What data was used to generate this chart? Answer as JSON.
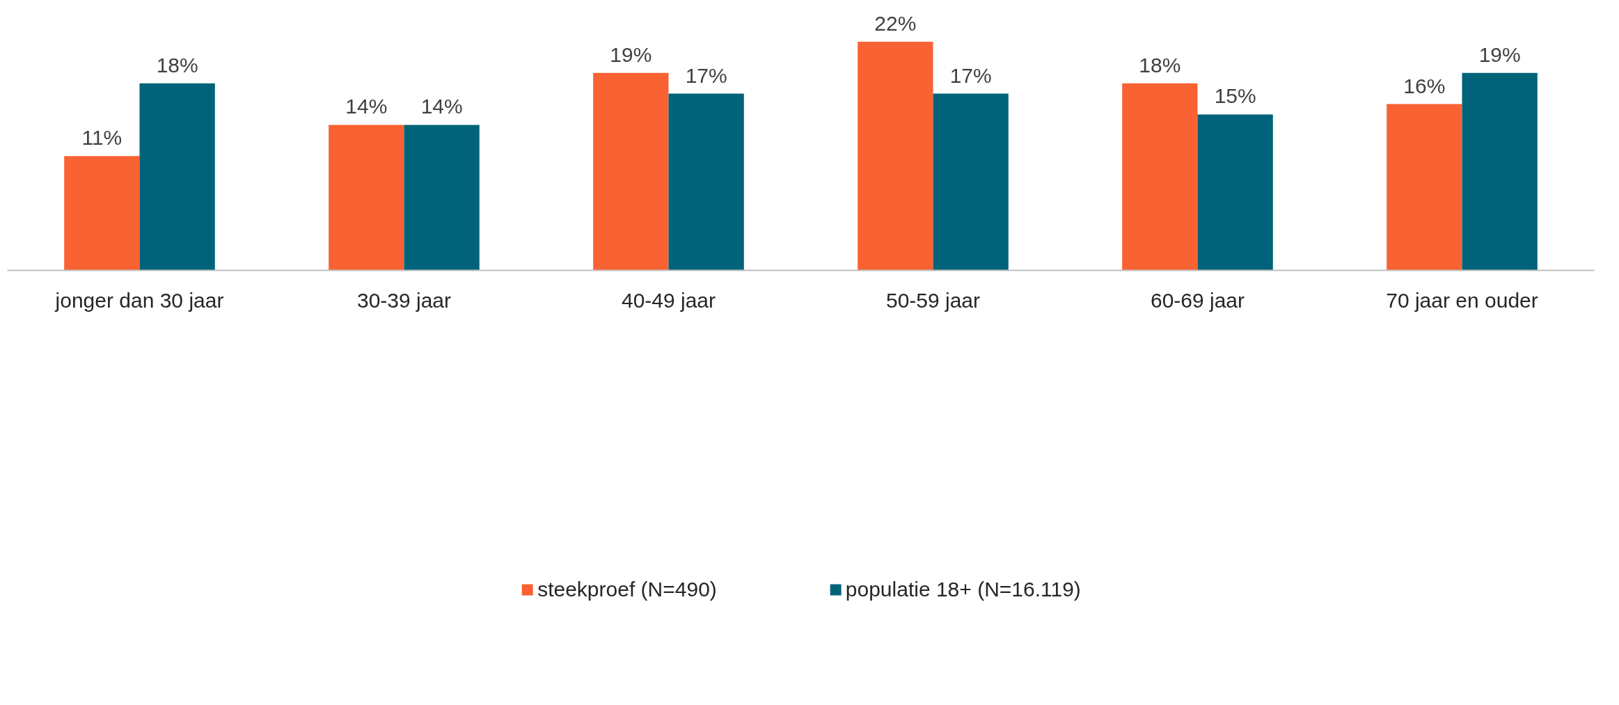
{
  "chart_data": {
    "type": "bar",
    "categories": [
      "jonger dan 30 jaar",
      "30-39 jaar",
      "40-49 jaar",
      "50-59 jaar",
      "60-69 jaar",
      "70 jaar en ouder"
    ],
    "series": [
      {
        "name": "steekproef (N=490)",
        "color": "#f96232",
        "values": [
          11,
          14,
          19,
          22,
          18,
          16
        ],
        "value_labels": [
          "11%",
          "14%",
          "19%",
          "22%",
          "18%",
          "16%"
        ]
      },
      {
        "name": "populatie 18+ (N=16.119)",
        "color": "#00637a",
        "values": [
          18,
          14,
          17,
          17,
          15,
          19
        ],
        "value_labels": [
          "18%",
          "14%",
          "17%",
          "17%",
          "15%",
          "19%"
        ]
      }
    ],
    "legend": "bottom",
    "grid": false
  }
}
